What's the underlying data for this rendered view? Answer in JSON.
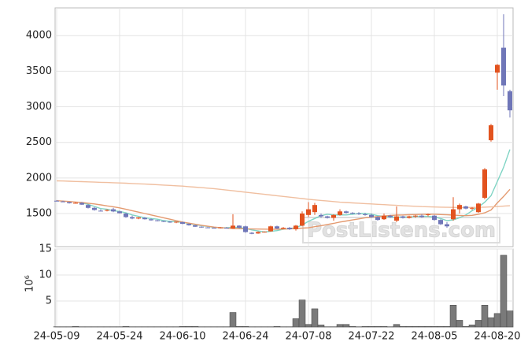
{
  "chart_data": [
    {
      "type": "candlestick",
      "categories": [
        "24-05-09",
        null,
        null,
        null,
        null,
        null,
        null,
        null,
        null,
        null,
        "24-05-24",
        null,
        null,
        null,
        null,
        null,
        null,
        null,
        null,
        null,
        "24-06-10",
        null,
        null,
        null,
        null,
        null,
        null,
        null,
        null,
        null,
        "24-06-24",
        null,
        null,
        null,
        null,
        null,
        null,
        null,
        null,
        null,
        "24-07-08",
        null,
        null,
        null,
        null,
        null,
        null,
        null,
        null,
        null,
        "24-07-22",
        null,
        null,
        null,
        null,
        null,
        null,
        null,
        null,
        null,
        "24-08-05",
        null,
        null,
        null,
        null,
        null,
        null,
        null,
        null,
        null,
        "24-08-20",
        null,
        null
      ],
      "open": [
        1680,
        1670,
        1660,
        1645,
        1650,
        1620,
        1580,
        1540,
        1540,
        1560,
        1530,
        1500,
        1450,
        1430,
        1440,
        1420,
        1405,
        1395,
        1385,
        1375,
        1380,
        1355,
        1335,
        1315,
        1305,
        1300,
        1295,
        1300,
        1290,
        1330,
        1320,
        1230,
        1220,
        1240,
        1250,
        1320,
        1290,
        1300,
        1280,
        1330,
        1480,
        1520,
        1480,
        1460,
        1440,
        1480,
        1530,
        1510,
        1500,
        1490,
        1480,
        1450,
        1420,
        1470,
        1400,
        1460,
        1440,
        1460,
        1470,
        1480,
        1470,
        1410,
        1350,
        1420,
        1560,
        1600,
        1570,
        1520,
        1720,
        2530,
        3480,
        3830,
        3220
      ],
      "high": [
        1690,
        1680,
        1665,
        1660,
        1660,
        1630,
        1590,
        1560,
        1560,
        1580,
        1540,
        1510,
        1470,
        1450,
        1450,
        1430,
        1410,
        1400,
        1395,
        1390,
        1385,
        1360,
        1340,
        1320,
        1310,
        1305,
        1310,
        1310,
        1490,
        1335,
        1330,
        1240,
        1250,
        1250,
        1330,
        1330,
        1310,
        1310,
        1340,
        1530,
        1660,
        1650,
        1500,
        1470,
        1490,
        1560,
        1540,
        1520,
        1520,
        1510,
        1500,
        1460,
        1500,
        1480,
        1600,
        1470,
        1470,
        1480,
        1490,
        1500,
        1480,
        1420,
        1380,
        1730,
        1640,
        1610,
        1590,
        1650,
        2140,
        2760,
        3600,
        4300,
        3240
      ],
      "low": [
        1670,
        1660,
        1640,
        1640,
        1620,
        1570,
        1540,
        1530,
        1530,
        1520,
        1500,
        1440,
        1420,
        1420,
        1415,
        1400,
        1390,
        1380,
        1370,
        1365,
        1350,
        1330,
        1310,
        1300,
        1295,
        1290,
        1290,
        1290,
        1285,
        1290,
        1230,
        1210,
        1215,
        1235,
        1245,
        1280,
        1280,
        1270,
        1260,
        1320,
        1450,
        1480,
        1440,
        1430,
        1400,
        1470,
        1500,
        1490,
        1480,
        1470,
        1440,
        1400,
        1410,
        1440,
        1380,
        1430,
        1430,
        1440,
        1440,
        1460,
        1400,
        1340,
        1300,
        1400,
        1500,
        1560,
        1550,
        1510,
        1700,
        2510,
        3240,
        3150,
        2850
      ],
      "close": [
        1675,
        1665,
        1645,
        1650,
        1625,
        1580,
        1550,
        1535,
        1550,
        1530,
        1505,
        1450,
        1430,
        1445,
        1420,
        1405,
        1395,
        1385,
        1375,
        1385,
        1355,
        1335,
        1315,
        1305,
        1300,
        1295,
        1305,
        1295,
        1330,
        1300,
        1240,
        1215,
        1240,
        1245,
        1320,
        1290,
        1300,
        1280,
        1330,
        1500,
        1560,
        1620,
        1460,
        1440,
        1480,
        1530,
        1510,
        1500,
        1490,
        1480,
        1450,
        1410,
        1470,
        1450,
        1460,
        1440,
        1460,
        1470,
        1450,
        1490,
        1410,
        1350,
        1320,
        1560,
        1620,
        1570,
        1580,
        1640,
        2120,
        2740,
        3590,
        3300,
        2950
      ],
      "up_color": "#e2531f",
      "down_color": "#6f76b8",
      "lines": [
        {
          "color": "#7fd4c4",
          "values": [
            null,
            null,
            null,
            null,
            1650,
            1630,
            1600,
            1570,
            1560,
            1540,
            1530,
            1510,
            1480,
            1460,
            1440,
            1430,
            1420,
            1400,
            1390,
            1385,
            1375,
            1360,
            1345,
            1330,
            1320,
            1305,
            1300,
            1300,
            1305,
            1305,
            1290,
            1270,
            1255,
            1240,
            1250,
            1260,
            1280,
            1290,
            1300,
            1340,
            1390,
            1430,
            1470,
            1490,
            1480,
            1480,
            1480,
            1490,
            1500,
            1500,
            1490,
            1470,
            1460,
            1450,
            1450,
            1450,
            1450,
            1460,
            1460,
            1460,
            1450,
            1430,
            1400,
            1410,
            1440,
            1480,
            1540,
            1590,
            1660,
            1750,
            1950,
            2150,
            2400
          ]
        },
        {
          "color": "#e49a70",
          "values": [
            1680,
            1675,
            1670,
            1662,
            1655,
            1645,
            1635,
            1622,
            1608,
            1595,
            1580,
            1560,
            1540,
            1520,
            1500,
            1480,
            1460,
            1440,
            1420,
            1400,
            1380,
            1365,
            1350,
            1335,
            1322,
            1310,
            1302,
            1296,
            1290,
            1288,
            1285,
            1283,
            1282,
            1281,
            1280,
            1280,
            1282,
            1285,
            1290,
            1295,
            1300,
            1315,
            1330,
            1345,
            1362,
            1380,
            1395,
            1410,
            1425,
            1440,
            1450,
            1458,
            1465,
            1472,
            1478,
            1480,
            1483,
            1486,
            1488,
            1490,
            1490,
            1486,
            1482,
            1478,
            1474,
            1470,
            1475,
            1490,
            1510,
            1550,
            1650,
            1740,
            1840
          ]
        },
        {
          "color": "#f0bfa0",
          "values": [
            1960,
            1957,
            1954,
            1951,
            1948,
            1945,
            1942,
            1939,
            1936,
            1933,
            1930,
            1926,
            1922,
            1918,
            1914,
            1910,
            1905,
            1900,
            1895,
            1890,
            1885,
            1878,
            1871,
            1864,
            1857,
            1850,
            1840,
            1830,
            1820,
            1810,
            1800,
            1790,
            1780,
            1770,
            1760,
            1750,
            1740,
            1730,
            1720,
            1710,
            1700,
            1692,
            1684,
            1676,
            1668,
            1660,
            1655,
            1650,
            1645,
            1640,
            1635,
            1630,
            1625,
            1620,
            1615,
            1610,
            1606,
            1602,
            1598,
            1595,
            1592,
            1590,
            1588,
            1586,
            1585,
            1585,
            1586,
            1588,
            1590,
            1593,
            1598,
            1604,
            1610
          ]
        }
      ],
      "ylim": [
        1035,
        4390
      ],
      "yticks": [
        1500,
        2000,
        2500,
        3000,
        3500,
        4000
      ],
      "grid": true,
      "watermark": "PostListens.com"
    },
    {
      "type": "bar",
      "values": [
        0.05,
        0.05,
        0.05,
        0.1,
        0.05,
        0.05,
        0.05,
        0.05,
        0.05,
        0.05,
        0.05,
        0.1,
        0.05,
        0.05,
        0.05,
        0.05,
        0.05,
        0.05,
        0.05,
        0.05,
        0.1,
        0.1,
        0.1,
        0.05,
        0.05,
        0.05,
        0.05,
        0.05,
        2.8,
        0.1,
        0.1,
        0.05,
        0.05,
        0.05,
        0.05,
        0.1,
        0.05,
        0.05,
        1.6,
        5.2,
        0.5,
        3.5,
        0.4,
        0.05,
        0.05,
        0.5,
        0.5,
        0.1,
        0.05,
        0.1,
        0.1,
        0.1,
        0.1,
        0.05,
        0.5,
        0.1,
        0.1,
        0.1,
        0.1,
        0.1,
        0.1,
        0.1,
        0.1,
        4.2,
        1.3,
        0.1,
        0.4,
        1.3,
        4.2,
        1.8,
        2.6,
        13.8,
        3.1
      ],
      "color": "#7a7a7a",
      "ylim": [
        0,
        15
      ],
      "yticks": [
        5,
        10,
        15
      ],
      "ylabel": "10⁶",
      "grid": true
    }
  ]
}
